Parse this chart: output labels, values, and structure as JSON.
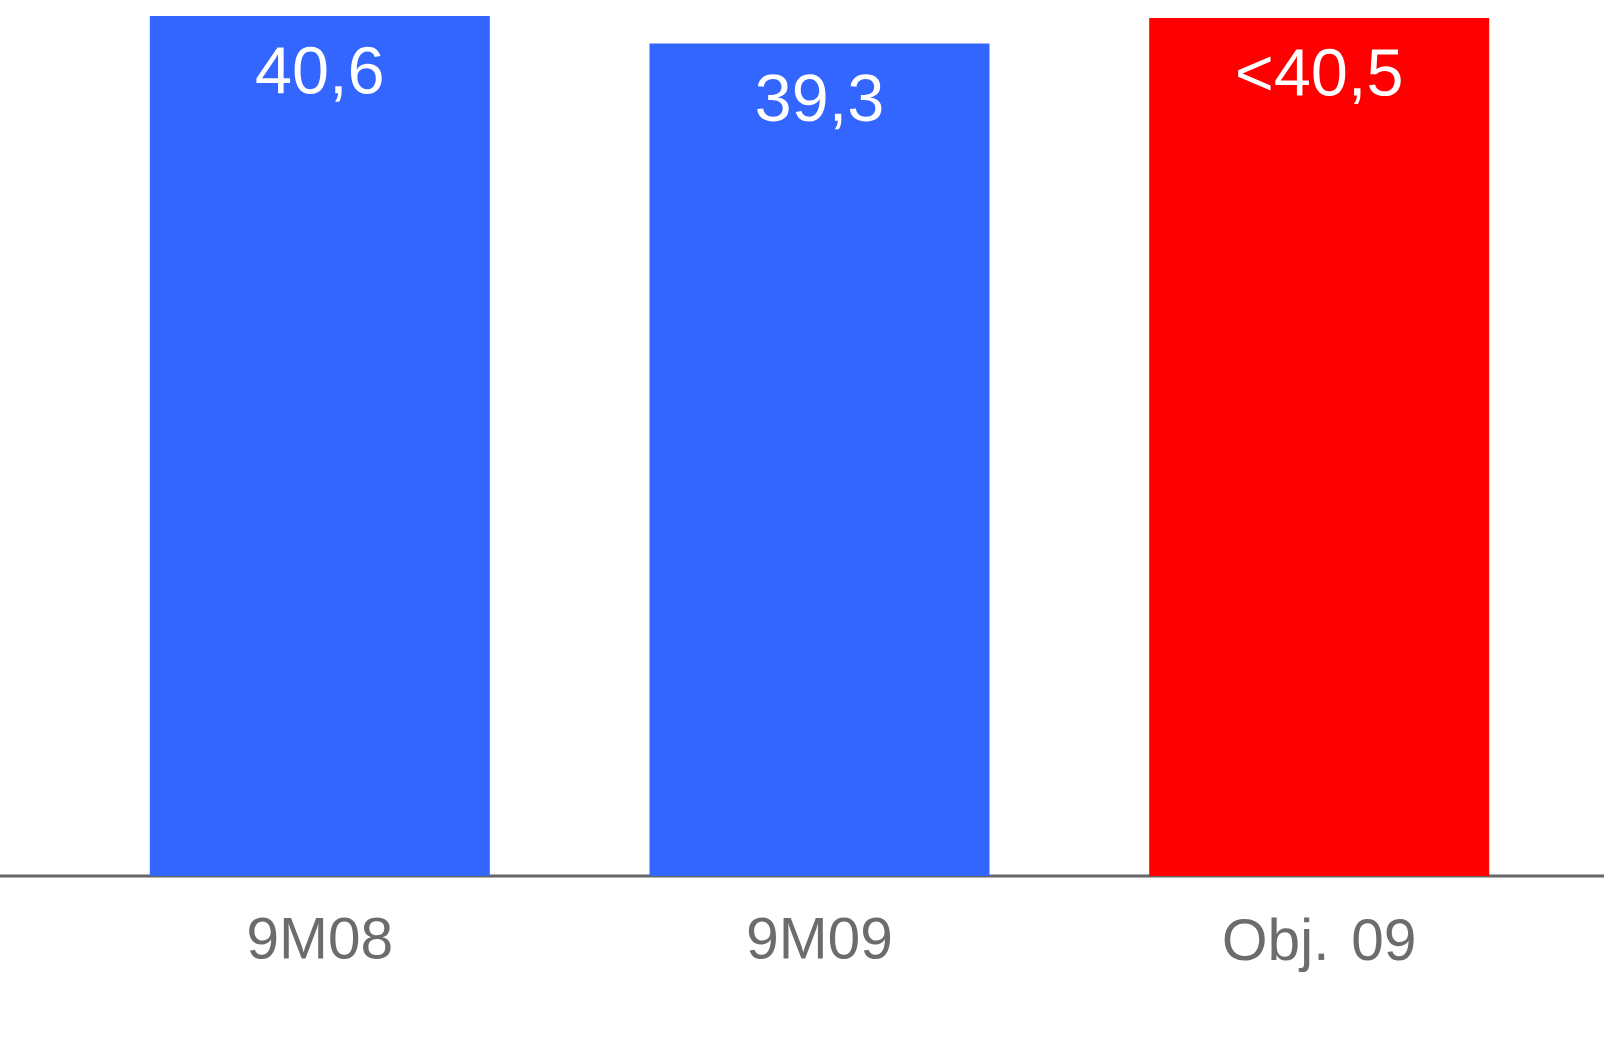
{
  "chart_data": {
    "type": "bar",
    "categories": [
      "9M08",
      "9M09",
      "Obj. 09"
    ],
    "values": [
      40.6,
      39.3,
      40.5
    ],
    "value_labels": [
      "40,6",
      "39,3",
      "<40,5"
    ],
    "colors": [
      "#3366ff",
      "#3366ff",
      "#ff0000"
    ]
  }
}
